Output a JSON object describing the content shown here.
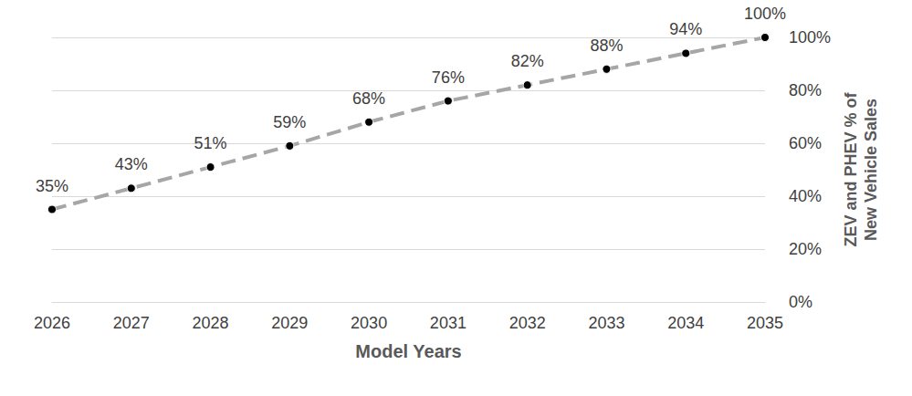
{
  "chart_data": {
    "type": "line",
    "x_label": "Model Years",
    "y_label": "ZEV and PHEV % of\nNew Vehicle Sales",
    "categories": [
      "2026",
      "2027",
      "2028",
      "2029",
      "2030",
      "2031",
      "2032",
      "2033",
      "2034",
      "2035"
    ],
    "values": [
      35,
      43,
      51,
      59,
      68,
      76,
      82,
      88,
      94,
      100
    ],
    "value_labels": [
      "35%",
      "43%",
      "51%",
      "59%",
      "68%",
      "76%",
      "82%",
      "88%",
      "94%",
      "100%"
    ],
    "data_labels": true,
    "color": "#a6a6a6",
    "marker": "circle",
    "line_style": "dashed",
    "ylim": [
      0,
      100
    ],
    "yticks": [
      {
        "value": 0,
        "label": "0%"
      },
      {
        "value": 20,
        "label": "20%"
      },
      {
        "value": 40,
        "label": "40%"
      },
      {
        "value": 60,
        "label": "60%"
      },
      {
        "value": 80,
        "label": "80%"
      },
      {
        "value": 100,
        "label": "100%"
      }
    ],
    "grid": true
  }
}
